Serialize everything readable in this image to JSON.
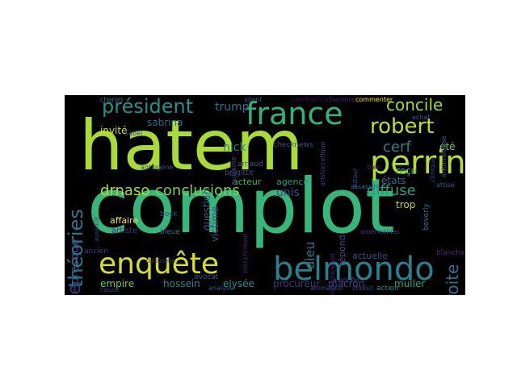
{
  "background": "#000000",
  "colormap": "viridis",
  "words": [
    {
      "text": "hatem",
      "color": "#a8db34"
    },
    {
      "text": "complot",
      "color": "#35b779"
    },
    {
      "text": "france",
      "color": "#2fb47c"
    },
    {
      "text": "enquête",
      "color": "#d5e21a"
    },
    {
      "text": "belmondo",
      "color": "#26828e"
    },
    {
      "text": "perrin",
      "color": "#b5de2b"
    },
    {
      "text": "robert",
      "color": "#c2df23"
    },
    {
      "text": "président",
      "color": "#21918c"
    },
    {
      "text": "concile",
      "color": "#a5db36"
    },
    {
      "text": "théories",
      "color": "#2a788e"
    },
    {
      "text": "campagne",
      "color": "#472d7b"
    },
    {
      "text": "drnaso",
      "color": "#b2dd2d"
    },
    {
      "text": "conclusions",
      "color": "#7ad151"
    },
    {
      "text": "diffuse",
      "color": "#1f9e89"
    },
    {
      "text": "cerf",
      "color": "#26828e"
    },
    {
      "text": "droite",
      "color": "#2c728e"
    },
    {
      "text": "dieu",
      "color": "#2a788e"
    },
    {
      "text": "nick",
      "color": "#25858e"
    },
    {
      "text": "trump",
      "color": "#2c718e"
    },
    {
      "text": "invité",
      "color": "#d2e21b"
    },
    {
      "text": "sabrina",
      "color": "#31688e"
    },
    {
      "text": "question",
      "color": "#355f8d"
    },
    {
      "text": "victime",
      "color": "#3b528b"
    },
    {
      "text": "acteur",
      "color": "#35b779"
    },
    {
      "text": "agence",
      "color": "#1fa088"
    },
    {
      "text": "unis",
      "color": "#3e4989"
    },
    {
      "text": "états",
      "color": "#31688e"
    },
    {
      "text": "reçu",
      "color": "#2db27d"
    },
    {
      "text": "été",
      "color": "#6ccd5a"
    },
    {
      "text": "trop",
      "color": "#b8de29"
    },
    {
      "text": "répond",
      "color": "#3e4a89"
    },
    {
      "text": "actuelle",
      "color": "#404688"
    },
    {
      "text": "presque",
      "color": "#3b528b"
    },
    {
      "text": "affaire",
      "color": "#fde725"
    },
    {
      "text": "artiste",
      "color": "#46327e"
    },
    {
      "text": "empire",
      "color": "#6ccd5a"
    },
    {
      "text": "hossein",
      "color": "#23898e"
    },
    {
      "text": "elysée",
      "color": "#1f958b"
    },
    {
      "text": "procureur",
      "color": "#46327e"
    },
    {
      "text": "macron",
      "color": "#3e4989"
    },
    {
      "text": "muller",
      "color": "#22a884"
    },
    {
      "text": "action",
      "color": "#21918c"
    },
    {
      "text": "blanche",
      "color": "#472c7a"
    },
    {
      "text": "bleue",
      "color": "#2e6f8e"
    },
    {
      "text": "bock",
      "color": "#3b528b"
    },
    {
      "text": "brigitte",
      "color": "#3e4a89"
    },
    {
      "text": "arnaud",
      "color": "#39568c"
    },
    {
      "text": "aubaine",
      "color": "#433e85"
    },
    {
      "text": "checknews",
      "color": "#3f4889"
    },
    {
      "text": "camillechri",
      "color": "#440154"
    },
    {
      "text": "chambre",
      "color": "#482475"
    },
    {
      "text": "commenter",
      "color": "#fde725"
    },
    {
      "text": "allant",
      "color": "#3b528b"
    },
    {
      "text": "charles",
      "color": "#2c728e"
    },
    {
      "text": "babel",
      "color": "#404688"
    },
    {
      "text": "antiogène",
      "color": "#3b528b"
    },
    {
      "text": "aristocratique",
      "color": "#433e85"
    },
    {
      "text": "bien",
      "color": "#482173"
    },
    {
      "text": "autour",
      "color": "#3e4a89"
    },
    {
      "text": "assassin",
      "color": "#31688e"
    },
    {
      "text": "achat",
      "color": "#355f8d"
    },
    {
      "text": "arithmétique",
      "color": "#3b528b"
    },
    {
      "text": "clinique",
      "color": "#433e85"
    },
    {
      "text": "attise",
      "color": "#39568c"
    },
    {
      "text": "aussitôt",
      "color": "#3e4989"
    },
    {
      "text": "ancien",
      "color": "#453781"
    },
    {
      "text": "blanchiment",
      "color": "#482878"
    },
    {
      "text": "amplifie",
      "color": "#3e4a89"
    },
    {
      "text": "communication",
      "color": "#482475"
    },
    {
      "text": "américaines",
      "color": "#433e85"
    },
    {
      "text": "beverly",
      "color": "#2c728e"
    },
    {
      "text": "avocat",
      "color": "#3b528b"
    },
    {
      "text": "culturelle",
      "color": "#472d7b"
    },
    {
      "text": "analyse",
      "color": "#39568c"
    },
    {
      "text": "animateur",
      "color": "#3e4a89"
    },
    {
      "text": "choisit",
      "color": "#404688"
    },
    {
      "text": "cause",
      "color": "#453781"
    }
  ]
}
